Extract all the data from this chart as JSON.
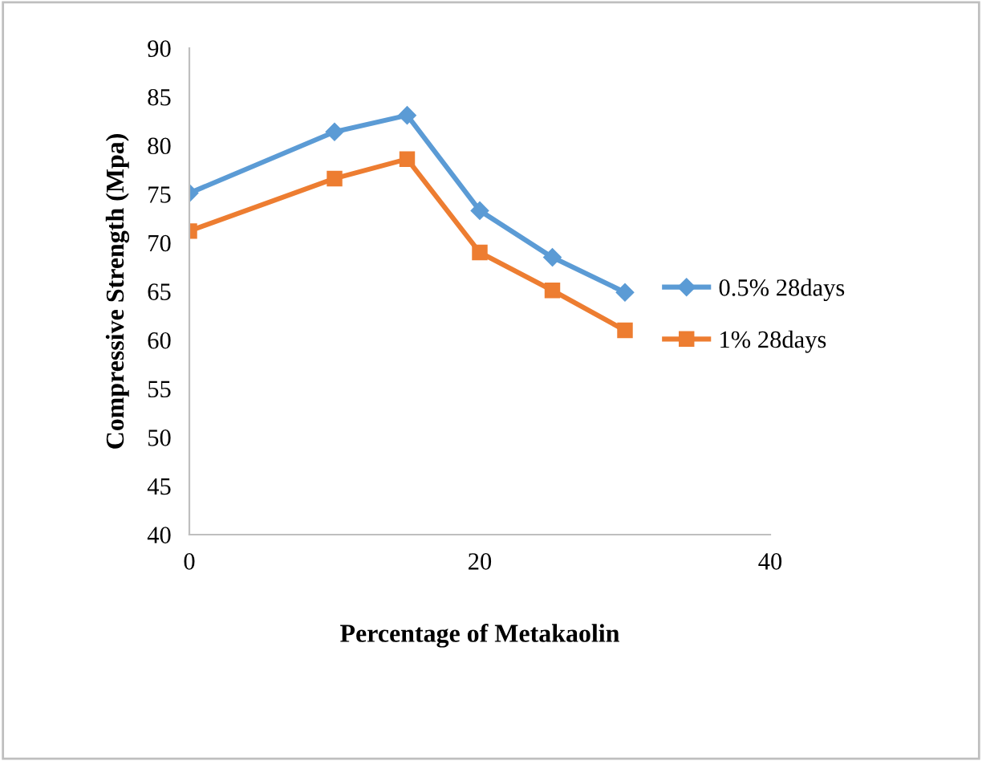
{
  "chart_data": {
    "type": "line",
    "xlabel": "Percentage of Metakaolin",
    "ylabel": "Compressive Strength (Mpa)",
    "x": [
      0,
      10,
      15,
      20,
      25,
      30
    ],
    "series": [
      {
        "name": "0.5% 28days",
        "color": "#5b9bd5",
        "marker": "diamond",
        "values": [
          75.1,
          81.4,
          83.1,
          73.3,
          68.5,
          64.9
        ]
      },
      {
        "name": "1% 28days",
        "color": "#ed7d31",
        "marker": "square",
        "values": [
          71.2,
          76.6,
          78.6,
          69,
          65.1,
          61
        ]
      }
    ],
    "xlim": [
      0,
      40
    ],
    "xticks": [
      0,
      20,
      40
    ],
    "ylim": [
      40,
      90
    ],
    "yticks": [
      40,
      45,
      50,
      55,
      60,
      65,
      70,
      75,
      80,
      85,
      90
    ],
    "grid": false,
    "legend": "right",
    "line_style": "solid"
  }
}
